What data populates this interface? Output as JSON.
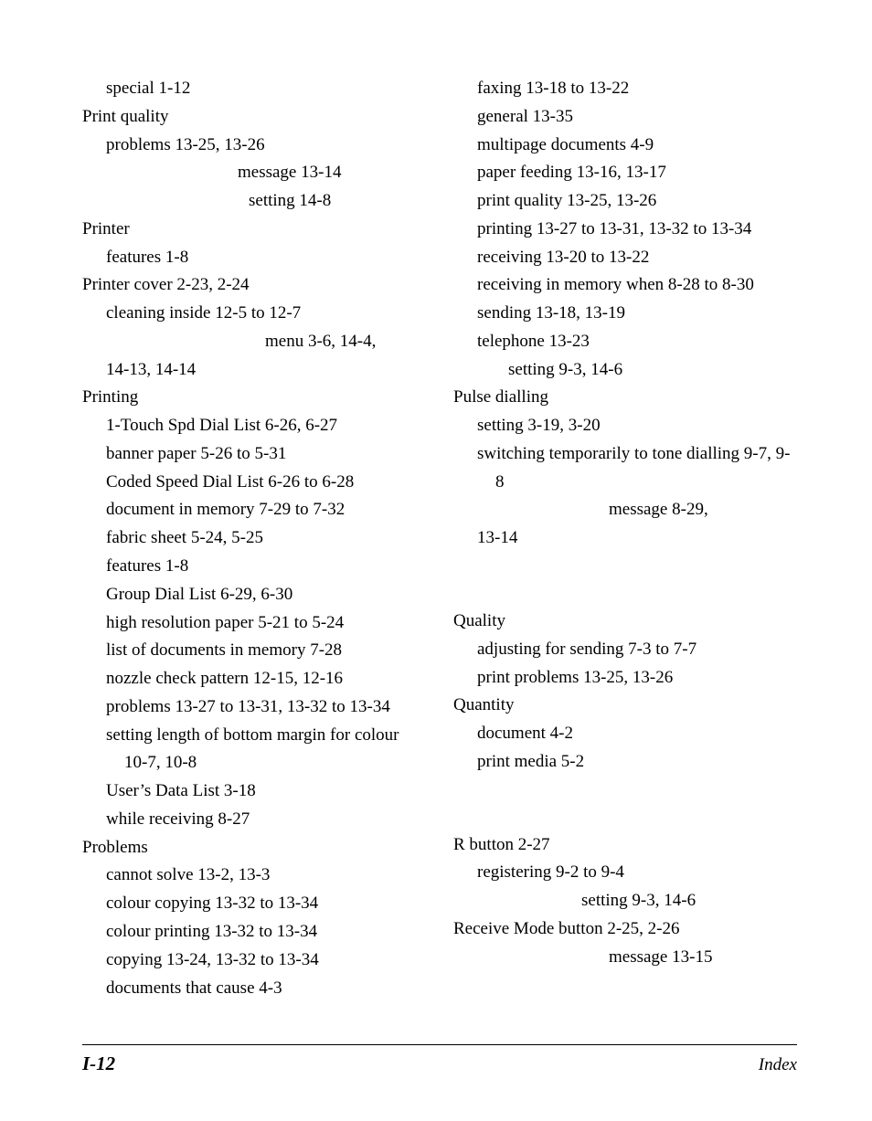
{
  "left_column": [
    {
      "cls": "l1",
      "t": "special   1-12"
    },
    {
      "cls": "l0",
      "t": "Print quality"
    },
    {
      "cls": "l1",
      "t": "problems   13-25, 13-26"
    },
    {
      "cls": "l0 rightish",
      "t": "message   13-14"
    },
    {
      "cls": "l0 rightish2",
      "t": "setting   14-8"
    },
    {
      "cls": "l0",
      "t": "Printer"
    },
    {
      "cls": "l1",
      "t": "features   1-8"
    },
    {
      "cls": "l0",
      "t": "Printer cover   2-23, 2-24"
    },
    {
      "cls": "l1",
      "t": "cleaning inside   12-5 to 12-7"
    },
    {
      "cls": "l0 rightish3",
      "t": "menu   3-6, 14-4,"
    },
    {
      "cls": "l1",
      "t": "14-13, 14-14"
    },
    {
      "cls": "l0",
      "t": "Printing"
    },
    {
      "cls": "l1",
      "t": "1-Touch Spd Dial List   6-26, 6-27"
    },
    {
      "cls": "l1",
      "t": "banner paper   5-26 to 5-31"
    },
    {
      "cls": "l1",
      "t": "Coded Speed Dial List   6-26 to 6-28"
    },
    {
      "cls": "l1",
      "t": "document in memory   7-29 to 7-32"
    },
    {
      "cls": "l1",
      "t": "fabric sheet   5-24, 5-25"
    },
    {
      "cls": "l1",
      "t": "features   1-8"
    },
    {
      "cls": "l1",
      "t": "Group Dial List   6-29, 6-30"
    },
    {
      "cls": "l1",
      "t": "high resolution paper   5-21 to 5-24"
    },
    {
      "cls": "l1",
      "t": "list of documents in memory   7-28"
    },
    {
      "cls": "l1",
      "t": "nozzle check pattern   12-15, 12-16"
    },
    {
      "cls": "hang1",
      "t": "problems   13-27 to 13-31, 13-32 to 13-34"
    },
    {
      "cls": "hang1",
      "t": "setting length of bottom margin for colour   10-7, 10-8"
    },
    {
      "cls": "l1",
      "t": "User’s Data List   3-18"
    },
    {
      "cls": "l1",
      "t": "while receiving   8-27"
    },
    {
      "cls": "l0",
      "t": "Problems"
    },
    {
      "cls": "l1",
      "t": "cannot solve   13-2, 13-3"
    },
    {
      "cls": "l1",
      "t": "colour copying   13-32 to 13-34"
    },
    {
      "cls": "l1",
      "t": "colour printing   13-32 to 13-34"
    },
    {
      "cls": "l1",
      "t": "copying   13-24, 13-32 to 13-34"
    },
    {
      "cls": "l1",
      "t": "documents that cause   4-3"
    }
  ],
  "right_column": [
    {
      "cls": "l1",
      "t": "faxing   13-18 to 13-22"
    },
    {
      "cls": "l1",
      "t": "general   13-35"
    },
    {
      "cls": "l1",
      "t": "multipage documents   4-9"
    },
    {
      "cls": "l1",
      "t": "paper feeding   13-16, 13-17"
    },
    {
      "cls": "l1",
      "t": "print quality   13-25, 13-26"
    },
    {
      "cls": "hang1",
      "t": "printing   13-27 to 13-31, 13-32 to 13-34"
    },
    {
      "cls": "l1",
      "t": "receiving   13-20 to 13-22"
    },
    {
      "cls": "hang1",
      "t": "receiving in memory when   8-28 to 8-30"
    },
    {
      "cls": "l1",
      "t": "sending   13-18, 13-19"
    },
    {
      "cls": "l1",
      "t": "telephone   13-23"
    },
    {
      "cls": "l1 rightish5",
      "t": "setting   9-3, 14-6"
    },
    {
      "cls": "l0",
      "t": "Pulse dialling"
    },
    {
      "cls": "l1",
      "t": "setting   3-19, 3-20"
    },
    {
      "cls": "hang1",
      "t": "switching temporarily to tone dialling   9-7, 9-8"
    },
    {
      "cls": "l0 rightish",
      "t": "message   8-29,"
    },
    {
      "cls": "l1",
      "t": "13-14"
    },
    {
      "cls": "section-gap",
      "t": ""
    },
    {
      "cls": "l0",
      "t": "Quality"
    },
    {
      "cls": "l1",
      "t": "adjusting for sending   7-3 to 7-7"
    },
    {
      "cls": "l1",
      "t": "print problems   13-25, 13-26"
    },
    {
      "cls": "l0",
      "t": "Quantity"
    },
    {
      "cls": "l1",
      "t": "document   4-2"
    },
    {
      "cls": "l1",
      "t": "print media   5-2"
    },
    {
      "cls": "section-gap",
      "t": ""
    },
    {
      "cls": "l0",
      "t": "R button   2-27"
    },
    {
      "cls": "l1",
      "t": "registering   9-2 to 9-4"
    },
    {
      "cls": "l0 rightish4",
      "t": "setting   9-3, 14-6"
    },
    {
      "cls": "l0",
      "t": "Receive Mode button   2-25, 2-26"
    },
    {
      "cls": "l0 rightish",
      "t": "message   13-15"
    }
  ],
  "footer": {
    "page_number": "I-12",
    "section": "Index"
  }
}
